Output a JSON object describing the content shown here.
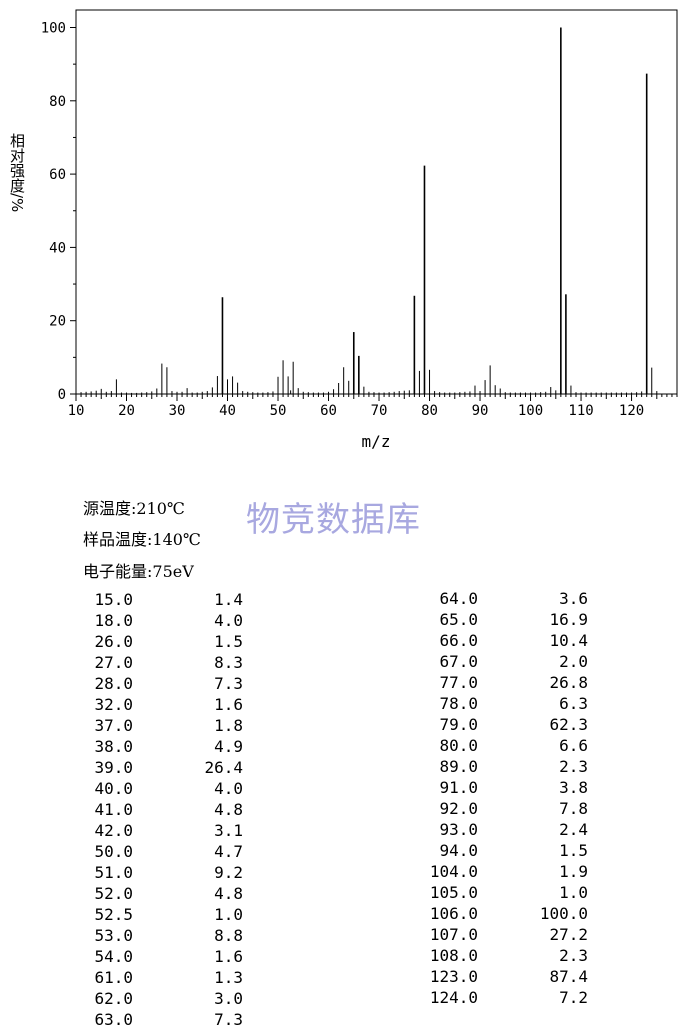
{
  "chart_data": {
    "type": "bar",
    "ylabel": "相对强度/%",
    "xlabel": "m/z",
    "xlim": [
      10,
      129
    ],
    "ylim": [
      0,
      100
    ],
    "xticks": [
      10,
      20,
      30,
      40,
      50,
      60,
      70,
      80,
      90,
      100,
      110,
      120
    ],
    "yticks": [
      0,
      20,
      40,
      60,
      80,
      100
    ],
    "peaks": [
      {
        "mz": 11,
        "i": 0.5
      },
      {
        "mz": 12,
        "i": 0.6
      },
      {
        "mz": 13,
        "i": 0.7
      },
      {
        "mz": 14,
        "i": 0.9
      },
      {
        "mz": 15,
        "i": 1.4
      },
      {
        "mz": 16,
        "i": 0.6
      },
      {
        "mz": 17,
        "i": 0.8
      },
      {
        "mz": 18,
        "i": 4.0
      },
      {
        "mz": 19,
        "i": 0.4
      },
      {
        "mz": 20,
        "i": 0.4
      },
      {
        "mz": 21,
        "i": 0.3
      },
      {
        "mz": 22,
        "i": 0.3
      },
      {
        "mz": 23,
        "i": 0.4
      },
      {
        "mz": 24,
        "i": 0.5
      },
      {
        "mz": 25,
        "i": 0.7
      },
      {
        "mz": 26,
        "i": 1.5
      },
      {
        "mz": 27,
        "i": 8.3
      },
      {
        "mz": 28,
        "i": 7.3
      },
      {
        "mz": 29,
        "i": 0.8
      },
      {
        "mz": 30,
        "i": 0.6
      },
      {
        "mz": 31,
        "i": 0.6
      },
      {
        "mz": 32,
        "i": 1.6
      },
      {
        "mz": 33,
        "i": 0.4
      },
      {
        "mz": 34,
        "i": 0.4
      },
      {
        "mz": 35,
        "i": 0.6
      },
      {
        "mz": 36,
        "i": 0.8
      },
      {
        "mz": 37,
        "i": 1.8
      },
      {
        "mz": 38,
        "i": 4.9
      },
      {
        "mz": 39,
        "i": 26.4
      },
      {
        "mz": 40,
        "i": 4.0
      },
      {
        "mz": 41,
        "i": 4.8
      },
      {
        "mz": 42,
        "i": 3.1
      },
      {
        "mz": 43,
        "i": 0.8
      },
      {
        "mz": 44,
        "i": 0.6
      },
      {
        "mz": 45,
        "i": 0.5
      },
      {
        "mz": 46,
        "i": 0.4
      },
      {
        "mz": 47,
        "i": 0.4
      },
      {
        "mz": 48,
        "i": 0.5
      },
      {
        "mz": 49,
        "i": 0.7
      },
      {
        "mz": 50,
        "i": 4.7
      },
      {
        "mz": 51,
        "i": 9.2
      },
      {
        "mz": 52,
        "i": 4.8
      },
      {
        "mz": 52.5,
        "i": 1.0
      },
      {
        "mz": 53,
        "i": 8.8
      },
      {
        "mz": 54,
        "i": 1.6
      },
      {
        "mz": 55,
        "i": 0.6
      },
      {
        "mz": 56,
        "i": 0.5
      },
      {
        "mz": 57,
        "i": 0.4
      },
      {
        "mz": 58,
        "i": 0.4
      },
      {
        "mz": 59,
        "i": 0.4
      },
      {
        "mz": 60,
        "i": 0.6
      },
      {
        "mz": 61,
        "i": 1.3
      },
      {
        "mz": 62,
        "i": 3.0
      },
      {
        "mz": 63,
        "i": 7.3
      },
      {
        "mz": 64,
        "i": 3.6
      },
      {
        "mz": 65,
        "i": 16.9
      },
      {
        "mz": 66,
        "i": 10.4
      },
      {
        "mz": 67,
        "i": 2.0
      },
      {
        "mz": 68,
        "i": 0.6
      },
      {
        "mz": 69,
        "i": 0.5
      },
      {
        "mz": 70,
        "i": 0.4
      },
      {
        "mz": 71,
        "i": 0.4
      },
      {
        "mz": 72,
        "i": 0.5
      },
      {
        "mz": 73,
        "i": 0.6
      },
      {
        "mz": 74,
        "i": 0.8
      },
      {
        "mz": 75,
        "i": 0.9
      },
      {
        "mz": 76,
        "i": 1.0
      },
      {
        "mz": 77,
        "i": 26.8
      },
      {
        "mz": 78,
        "i": 6.3
      },
      {
        "mz": 79,
        "i": 62.3
      },
      {
        "mz": 80,
        "i": 6.6
      },
      {
        "mz": 81,
        "i": 0.8
      },
      {
        "mz": 82,
        "i": 0.5
      },
      {
        "mz": 83,
        "i": 0.4
      },
      {
        "mz": 84,
        "i": 0.4
      },
      {
        "mz": 85,
        "i": 0.4
      },
      {
        "mz": 86,
        "i": 0.5
      },
      {
        "mz": 87,
        "i": 0.6
      },
      {
        "mz": 88,
        "i": 0.7
      },
      {
        "mz": 89,
        "i": 2.3
      },
      {
        "mz": 90,
        "i": 0.8
      },
      {
        "mz": 91,
        "i": 3.8
      },
      {
        "mz": 92,
        "i": 7.8
      },
      {
        "mz": 93,
        "i": 2.4
      },
      {
        "mz": 94,
        "i": 1.5
      },
      {
        "mz": 95,
        "i": 0.5
      },
      {
        "mz": 96,
        "i": 0.4
      },
      {
        "mz": 97,
        "i": 0.4
      },
      {
        "mz": 98,
        "i": 0.4
      },
      {
        "mz": 99,
        "i": 0.4
      },
      {
        "mz": 100,
        "i": 0.4
      },
      {
        "mz": 101,
        "i": 0.4
      },
      {
        "mz": 102,
        "i": 0.5
      },
      {
        "mz": 103,
        "i": 0.6
      },
      {
        "mz": 104,
        "i": 1.9
      },
      {
        "mz": 105,
        "i": 1.0
      },
      {
        "mz": 106,
        "i": 100.0
      },
      {
        "mz": 107,
        "i": 27.2
      },
      {
        "mz": 108,
        "i": 2.3
      },
      {
        "mz": 109,
        "i": 0.5
      },
      {
        "mz": 110,
        "i": 0.4
      },
      {
        "mz": 111,
        "i": 0.4
      },
      {
        "mz": 112,
        "i": 0.4
      },
      {
        "mz": 113,
        "i": 0.4
      },
      {
        "mz": 114,
        "i": 0.4
      },
      {
        "mz": 115,
        "i": 0.4
      },
      {
        "mz": 116,
        "i": 0.4
      },
      {
        "mz": 117,
        "i": 0.4
      },
      {
        "mz": 118,
        "i": 0.4
      },
      {
        "mz": 119,
        "i": 0.4
      },
      {
        "mz": 120,
        "i": 0.4
      },
      {
        "mz": 121,
        "i": 0.5
      },
      {
        "mz": 122,
        "i": 0.7
      },
      {
        "mz": 123,
        "i": 87.4
      },
      {
        "mz": 124,
        "i": 7.2
      },
      {
        "mz": 125,
        "i": 0.8
      }
    ]
  },
  "info": {
    "source_temp": "源温度:210℃",
    "sample_temp": "样品温度:140℃",
    "electron_energy": "电子能量:75eV"
  },
  "watermark": "物竞数据库",
  "table_left": [
    [
      "15.0",
      "1.4"
    ],
    [
      "18.0",
      "4.0"
    ],
    [
      "26.0",
      "1.5"
    ],
    [
      "27.0",
      "8.3"
    ],
    [
      "28.0",
      "7.3"
    ],
    [
      "32.0",
      "1.6"
    ],
    [
      "37.0",
      "1.8"
    ],
    [
      "38.0",
      "4.9"
    ],
    [
      "39.0",
      "26.4"
    ],
    [
      "40.0",
      "4.0"
    ],
    [
      "41.0",
      "4.8"
    ],
    [
      "42.0",
      "3.1"
    ],
    [
      "50.0",
      "4.7"
    ],
    [
      "51.0",
      "9.2"
    ],
    [
      "52.0",
      "4.8"
    ],
    [
      "52.5",
      "1.0"
    ],
    [
      "53.0",
      "8.8"
    ],
    [
      "54.0",
      "1.6"
    ],
    [
      "61.0",
      "1.3"
    ],
    [
      "62.0",
      "3.0"
    ],
    [
      "63.0",
      "7.3"
    ]
  ],
  "table_right": [
    [
      "64.0",
      "3.6"
    ],
    [
      "65.0",
      "16.9"
    ],
    [
      "66.0",
      "10.4"
    ],
    [
      "67.0",
      "2.0"
    ],
    [
      "77.0",
      "26.8"
    ],
    [
      "78.0",
      "6.3"
    ],
    [
      "79.0",
      "62.3"
    ],
    [
      "80.0",
      "6.6"
    ],
    [
      "89.0",
      "2.3"
    ],
    [
      "91.0",
      "3.8"
    ],
    [
      "92.0",
      "7.8"
    ],
    [
      "93.0",
      "2.4"
    ],
    [
      "94.0",
      "1.5"
    ],
    [
      "104.0",
      "1.9"
    ],
    [
      "105.0",
      "1.0"
    ],
    [
      "106.0",
      "100.0"
    ],
    [
      "107.0",
      "27.2"
    ],
    [
      "108.0",
      "2.3"
    ],
    [
      "123.0",
      "87.4"
    ],
    [
      "124.0",
      "7.2"
    ]
  ]
}
